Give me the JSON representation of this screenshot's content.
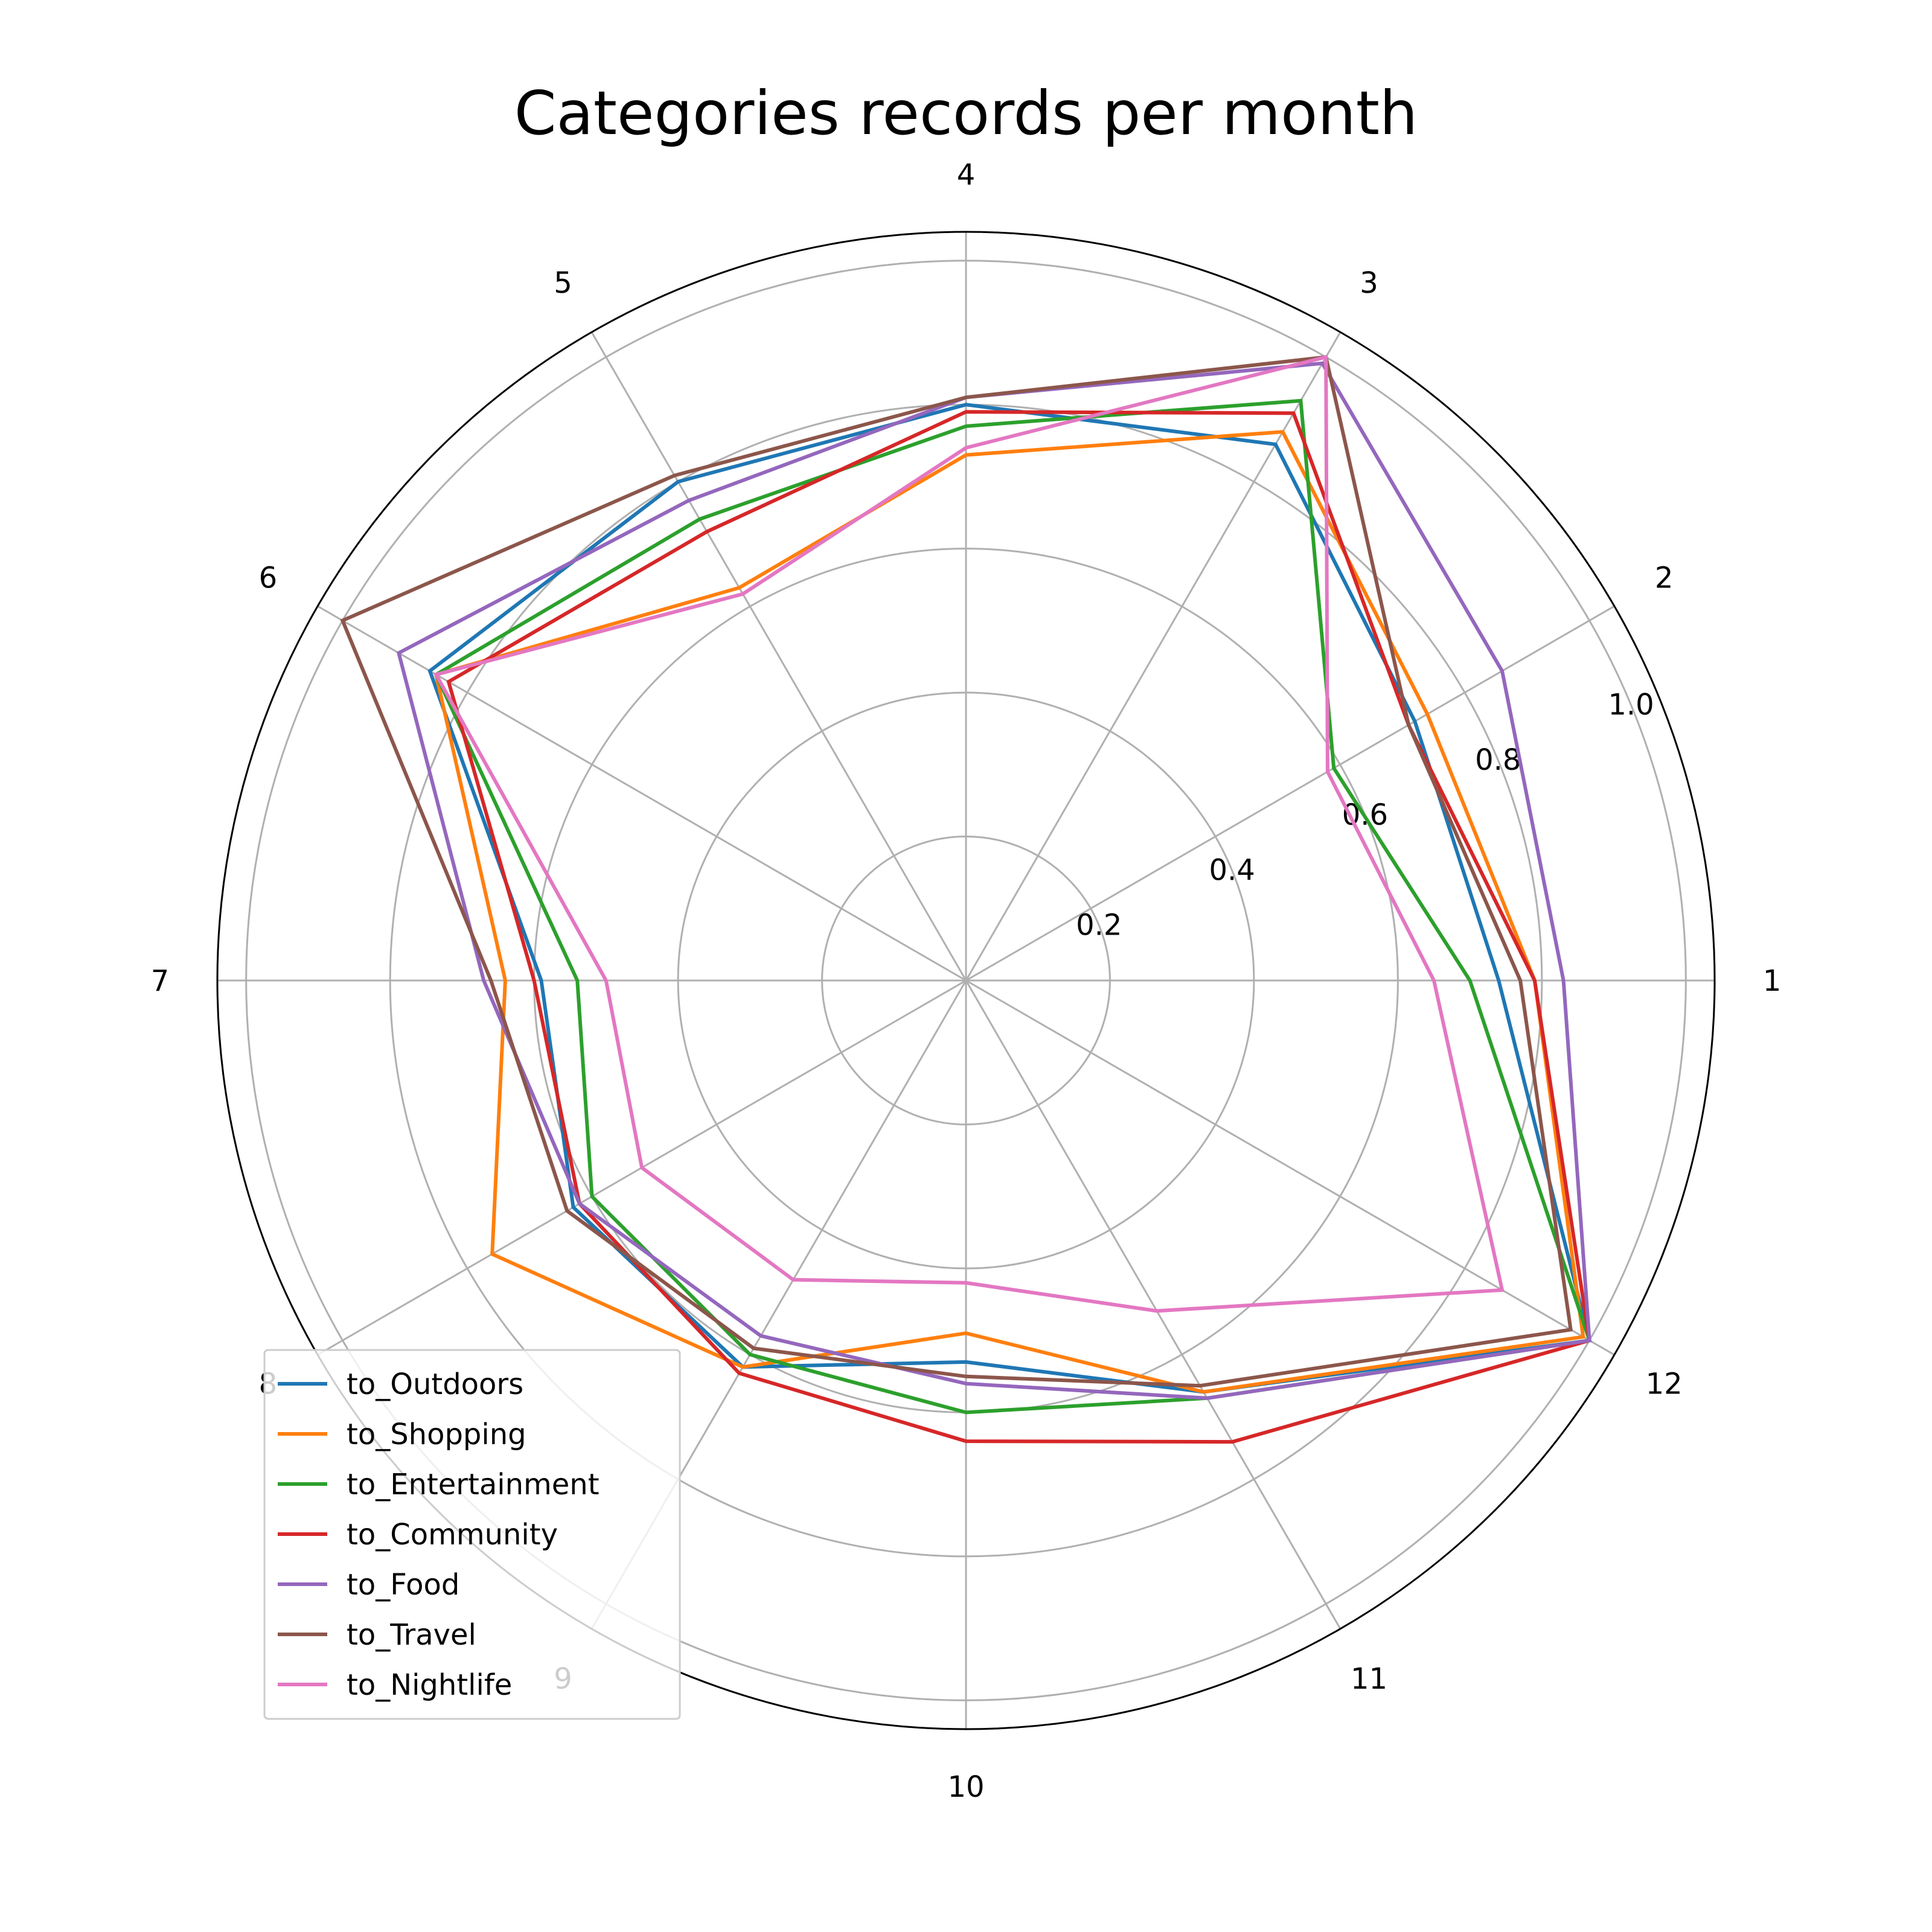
{
  "chart_data": {
    "type": "radar",
    "title": "Categories records per month",
    "categories": [
      "1",
      "2",
      "3",
      "4",
      "5",
      "6",
      "7",
      "8",
      "9",
      "10",
      "11",
      "12"
    ],
    "rlim": [
      0,
      1.04
    ],
    "r_ticks": [
      0.2,
      0.4,
      0.6,
      0.8,
      1.0
    ],
    "r_tick_labels": [
      "0.2",
      "0.4",
      "0.6",
      "0.8",
      "1.0"
    ],
    "grid": true,
    "legend_position": "lower-left",
    "series": [
      {
        "name": "to_Outdoors",
        "color": "#1f77b4",
        "values": [
          0.74,
          0.72,
          0.86,
          0.8,
          0.8,
          0.86,
          0.59,
          0.63,
          0.62,
          0.53,
          0.66,
          1.0
        ]
      },
      {
        "name": "to_Shopping",
        "color": "#ff7f0e",
        "values": [
          0.79,
          0.74,
          0.88,
          0.73,
          0.63,
          0.85,
          0.64,
          0.76,
          0.62,
          0.49,
          0.66,
          0.99
        ]
      },
      {
        "name": "to_Entertainment",
        "color": "#2ca02c",
        "values": [
          0.7,
          0.59,
          0.93,
          0.77,
          0.74,
          0.85,
          0.54,
          0.6,
          0.6,
          0.6,
          0.67,
          1.0
        ]
      },
      {
        "name": "to_Community",
        "color": "#d62728",
        "values": [
          0.79,
          0.71,
          0.91,
          0.79,
          0.72,
          0.83,
          0.6,
          0.62,
          0.63,
          0.64,
          0.74,
          1.0
        ]
      },
      {
        "name": "to_Food",
        "color": "#9467bd",
        "values": [
          0.83,
          0.86,
          0.99,
          0.81,
          0.77,
          0.91,
          0.67,
          0.62,
          0.57,
          0.56,
          0.67,
          1.0
        ]
      },
      {
        "name": "to_Travel",
        "color": "#8c564b",
        "values": [
          0.77,
          0.71,
          1.0,
          0.81,
          0.81,
          1.0,
          0.66,
          0.64,
          0.59,
          0.55,
          0.65,
          0.97
        ]
      },
      {
        "name": "to_Nightlife",
        "color": "#e377c2",
        "values": [
          0.65,
          0.58,
          1.0,
          0.74,
          0.62,
          0.85,
          0.5,
          0.52,
          0.48,
          0.42,
          0.53,
          0.86
        ]
      }
    ]
  }
}
